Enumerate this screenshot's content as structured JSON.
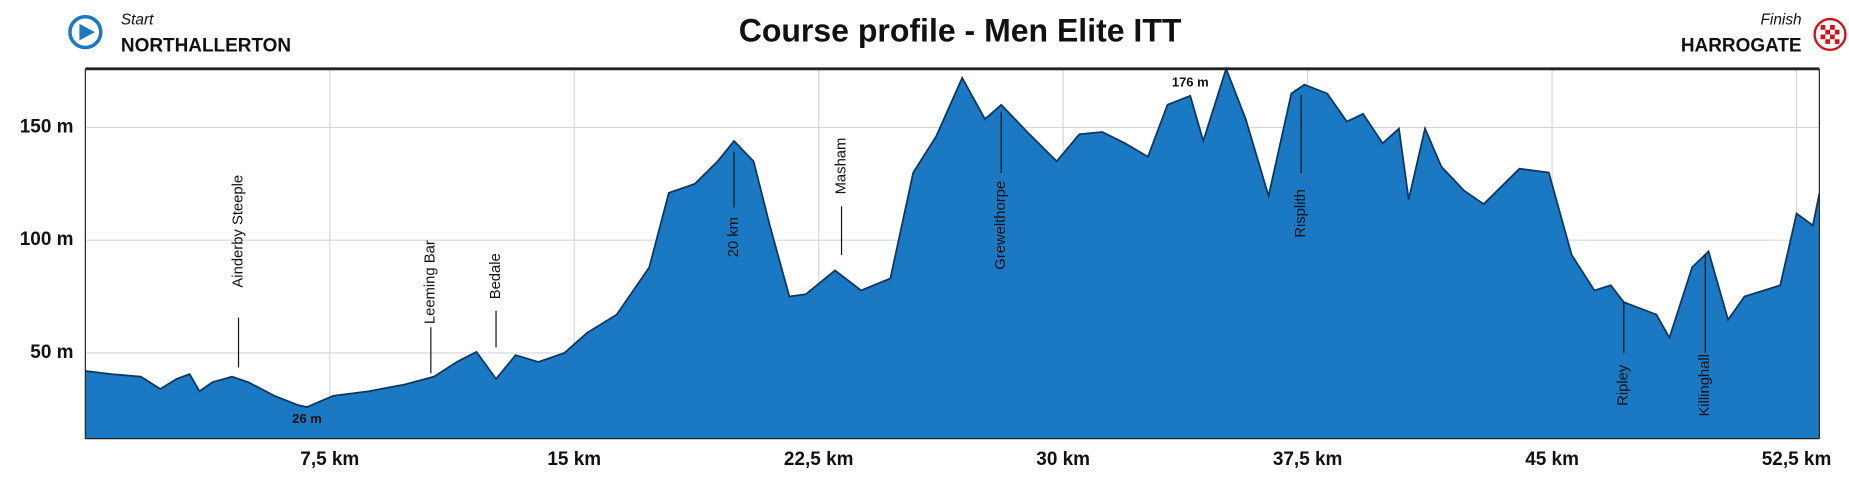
{
  "chart_data": {
    "type": "area",
    "title": "Course profile - Men Elite ITT",
    "start": {
      "label": "Start",
      "place": "NORTHALLERTON"
    },
    "finish": {
      "label": "Finish",
      "place": "HARROGATE"
    },
    "color": "#1b79c4",
    "line_color": "#0c3760",
    "grid": true,
    "xlim": [
      0,
      53.2
    ],
    "ylim": [
      12,
      176
    ],
    "xticks": [
      {
        "value": 7.5,
        "label": "7,5 km"
      },
      {
        "value": 15,
        "label": "15 km"
      },
      {
        "value": 22.5,
        "label": "22,5 km"
      },
      {
        "value": 30,
        "label": "30 km"
      },
      {
        "value": 37.5,
        "label": "37,5 km"
      },
      {
        "value": 45,
        "label": "45 km"
      },
      {
        "value": 52.5,
        "label": "52,5 km"
      }
    ],
    "yticks": [
      {
        "value": 50,
        "label": "50 m"
      },
      {
        "value": 100,
        "label": "100 m"
      },
      {
        "value": 150,
        "label": "150 m"
      }
    ],
    "x": [
      0,
      0.8,
      1.7,
      2.3,
      2.8,
      3.2,
      3.5,
      3.9,
      4.5,
      5.0,
      5.8,
      6.5,
      6.8,
      7.6,
      8.7,
      9.8,
      10.7,
      11.4,
      12.0,
      12.6,
      13.2,
      13.9,
      14.7,
      15.4,
      16.3,
      17.3,
      17.9,
      18.7,
      19.4,
      19.9,
      20.5,
      21.0,
      21.6,
      22.1,
      23.0,
      23.8,
      24.7,
      25.4,
      26.1,
      26.9,
      27.6,
      28.1,
      28.9,
      29.8,
      30.5,
      31.2,
      31.9,
      32.6,
      33.2,
      33.9,
      34.3,
      35.0,
      35.6,
      36.3,
      37.0,
      37.4,
      38.1,
      38.7,
      39.2,
      39.8,
      40.3,
      40.6,
      41.1,
      41.6,
      42.3,
      42.9,
      44.0,
      44.9,
      45.6,
      46.3,
      46.8,
      47.2,
      48.2,
      48.6,
      49.3,
      49.8,
      50.4,
      50.9,
      52.0,
      52.5,
      53.0,
      53.2
    ],
    "values": [
      42,
      40.6,
      39.5,
      34,
      38.5,
      40.6,
      33,
      37,
      39.5,
      37,
      31,
      27,
      26,
      31,
      33,
      36,
      39.5,
      46,
      50.5,
      38.5,
      49,
      46,
      50,
      59,
      67,
      88,
      121,
      125,
      135,
      144,
      135,
      106.5,
      75,
      76,
      86.6,
      77.7,
      83,
      130,
      146,
      172,
      153.7,
      160,
      148,
      135,
      147,
      148,
      143,
      137,
      160,
      164,
      144,
      176,
      153.7,
      119.6,
      165,
      169,
      165,
      152.6,
      156,
      143,
      149.5,
      118,
      149.5,
      132.7,
      122,
      116,
      131.7,
      130,
      93.5,
      77.7,
      80,
      72.5,
      67,
      56.8,
      88,
      95,
      64.7,
      75,
      80,
      111.8,
      106.5,
      120.7
    ],
    "annotations": [
      {
        "text": "Ainderby Steeple",
        "x": 4.7
      },
      {
        "text": "Leeming Bar",
        "x": 10.6
      },
      {
        "text": "Bedale",
        "x": 12.6
      },
      {
        "text": "20 km",
        "x": 19.9
      },
      {
        "text": "Masham",
        "x": 23.2
      },
      {
        "text": "Grewelthorpe",
        "x": 28.1
      },
      {
        "text": "Risplith",
        "x": 37.3
      },
      {
        "text": "Ripley",
        "x": 47.2
      },
      {
        "text": "Killinghall",
        "x": 49.7
      }
    ],
    "peak_labels": [
      {
        "text": "26 m",
        "x": 6.8
      },
      {
        "text": "176 m",
        "x": 33.9
      }
    ]
  }
}
